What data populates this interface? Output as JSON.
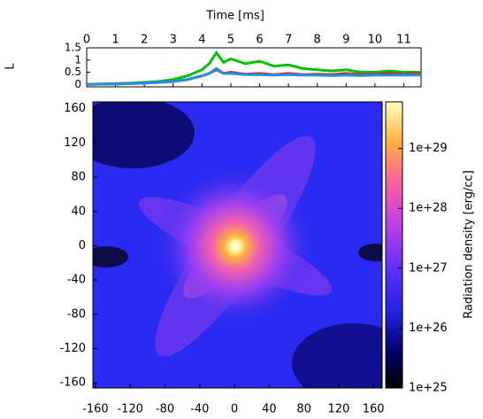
{
  "chart_data": [
    {
      "type": "line",
      "xlabel": "Time [ms]",
      "ylabel": "L",
      "x": [
        0,
        0.5,
        1,
        1.5,
        2,
        2.5,
        3,
        3.5,
        4,
        4.25,
        4.5,
        4.75,
        5,
        5.5,
        6,
        6.5,
        7,
        7.5,
        8,
        8.5,
        9,
        9.5,
        10,
        10.5,
        11,
        11.6
      ],
      "series": [
        {
          "color": "#00c000",
          "values": [
            0,
            0.02,
            0.03,
            0.05,
            0.08,
            0.12,
            0.2,
            0.35,
            0.6,
            0.85,
            1.3,
            0.9,
            1.05,
            0.85,
            0.95,
            0.75,
            0.8,
            0.65,
            0.6,
            0.55,
            0.6,
            0.5,
            0.5,
            0.55,
            0.5,
            0.5
          ]
        },
        {
          "color": "#e02020",
          "values": [
            0,
            0.01,
            0.02,
            0.03,
            0.05,
            0.08,
            0.12,
            0.2,
            0.35,
            0.45,
            0.6,
            0.45,
            0.5,
            0.42,
            0.45,
            0.4,
            0.45,
            0.4,
            0.42,
            0.4,
            0.45,
            0.4,
            0.42,
            0.45,
            0.42,
            0.45
          ]
        },
        {
          "color": "#2090e0",
          "values": [
            0,
            0.01,
            0.02,
            0.03,
            0.05,
            0.08,
            0.12,
            0.2,
            0.35,
            0.45,
            0.65,
            0.45,
            0.45,
            0.4,
            0.4,
            0.38,
            0.4,
            0.38,
            0.38,
            0.36,
            0.38,
            0.36,
            0.38,
            0.38,
            0.38,
            0.38
          ]
        }
      ],
      "xlim": [
        0,
        11.6
      ],
      "xticks": [
        0,
        1,
        2,
        3,
        4,
        5,
        6,
        7,
        8,
        9,
        10,
        11
      ],
      "ylim": [
        -0.1,
        1.5
      ],
      "yticks": [
        0,
        0.5,
        1,
        1.5
      ]
    },
    {
      "type": "heatmap",
      "xlim": [
        -163,
        170
      ],
      "xticks": [
        -160,
        -120,
        -80,
        -40,
        0,
        40,
        80,
        120,
        160
      ],
      "ylim": [
        -166,
        168
      ],
      "yticks": [
        -160,
        -120,
        -80,
        -40,
        0,
        40,
        80,
        120,
        160
      ],
      "colorbar": {
        "label": "Radiation density  [erg/cc]",
        "log": true,
        "lim": [
          1e+25,
          6e+29
        ],
        "ticks": [
          {
            "value": 1e+25,
            "label": "1e+25"
          },
          {
            "value": 1e+26,
            "label": "1e+26"
          },
          {
            "value": 1e+27,
            "label": "1e+27"
          },
          {
            "value": 1e+28,
            "label": "1e+28"
          },
          {
            "value": 1e+29,
            "label": "1e+29"
          }
        ]
      }
    }
  ]
}
